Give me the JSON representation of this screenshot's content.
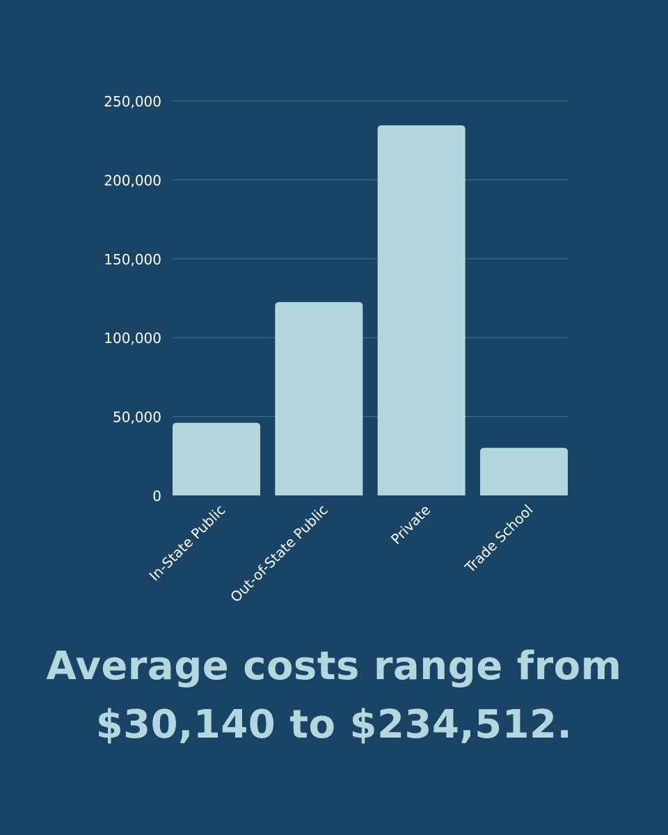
{
  "colors": {
    "background": "#194466",
    "bar": "#b3d7dd",
    "grid": "#4c6f8c",
    "tick_text": "#ffffff",
    "caption_text": "#b3d7dd"
  },
  "chart_data": {
    "type": "bar",
    "categories": [
      "In-State Public",
      "Out-of-State Public",
      "Private",
      "Trade School"
    ],
    "values": [
      46000,
      122500,
      234512,
      30140
    ],
    "ylim": [
      0,
      250000
    ],
    "yticks": [
      0,
      50000,
      100000,
      150000,
      200000,
      250000
    ],
    "ytick_labels": [
      "0",
      "50,000",
      "100,000",
      "150,000",
      "200,000",
      "250,000"
    ],
    "grid": true,
    "legend": "none"
  },
  "caption": {
    "line1": "Average costs range from",
    "line2": "$30,140 to $234,512."
  }
}
